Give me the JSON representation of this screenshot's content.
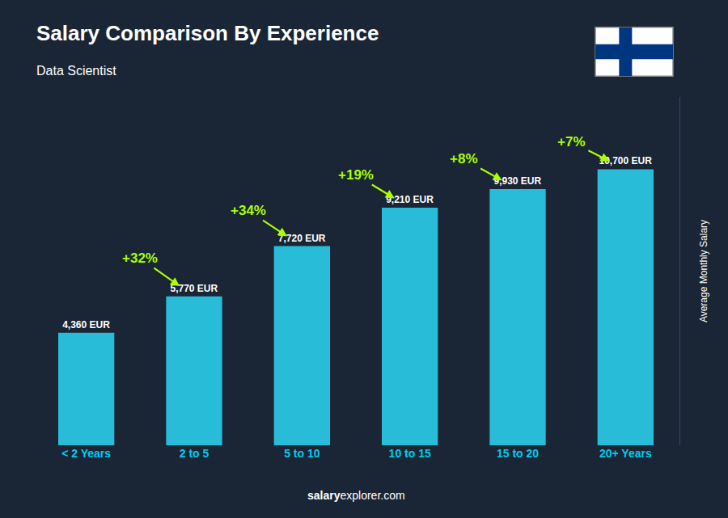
{
  "chart_data": {
    "type": "bar",
    "title": "Salary Comparison By Experience",
    "subtitle": "Data Scientist",
    "categories": [
      "< 2 Years",
      "2 to 5",
      "5 to 10",
      "10 to 15",
      "15 to 20",
      "20+ Years"
    ],
    "values": [
      4360,
      5770,
      7720,
      9210,
      9930,
      10700
    ],
    "value_labels": [
      "4,360 EUR",
      "5,770 EUR",
      "7,720 EUR",
      "9,210 EUR",
      "9,930 EUR",
      "10,700 EUR"
    ],
    "data_labels": true,
    "color": "#28bcd8",
    "annotations": [
      {
        "text": "+32%",
        "color": "#aaff00"
      },
      {
        "text": "+34%",
        "color": "#aaff00"
      },
      {
        "text": "+19%",
        "color": "#aaff00"
      },
      {
        "text": "+8%",
        "color": "#aaff00"
      },
      {
        "text": "+7%",
        "color": "#aaff00"
      }
    ],
    "ylabel": "Average Monthly Salary",
    "footer": [
      "salary",
      "explorer.com"
    ],
    "ylim": [
      0,
      13500
    ],
    "yticks": [],
    "tick_labels": "x",
    "grid": false
  }
}
